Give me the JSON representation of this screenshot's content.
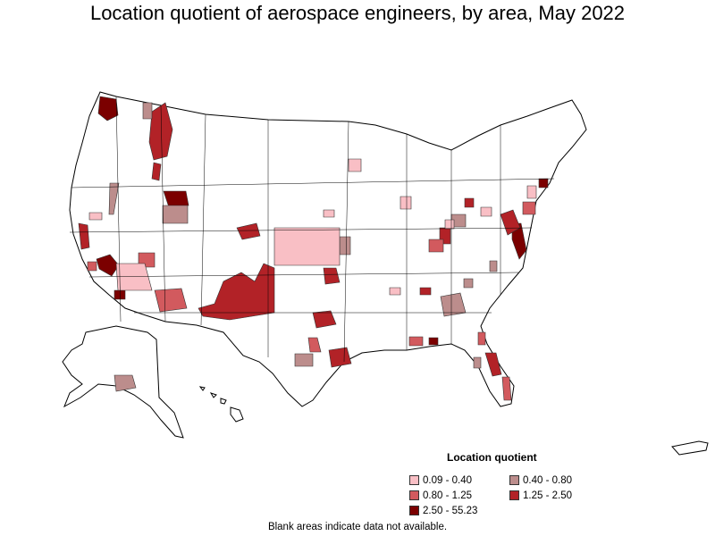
{
  "title": "Location quotient of aerospace engineers, by area, May 2022",
  "legend": {
    "title": "Location quotient",
    "items": [
      {
        "label": "0.09 - 0.40",
        "color": "#f9bfc5"
      },
      {
        "label": "0.40 - 0.80",
        "color": "#bc8d8c"
      },
      {
        "label": "0.80 - 1.25",
        "color": "#d25a5e"
      },
      {
        "label": "1.25 - 2.50",
        "color": "#b22227"
      },
      {
        "label": "2.50 - 55.23",
        "color": "#7b0000"
      }
    ]
  },
  "footnote": "Blank areas indicate data not available."
}
